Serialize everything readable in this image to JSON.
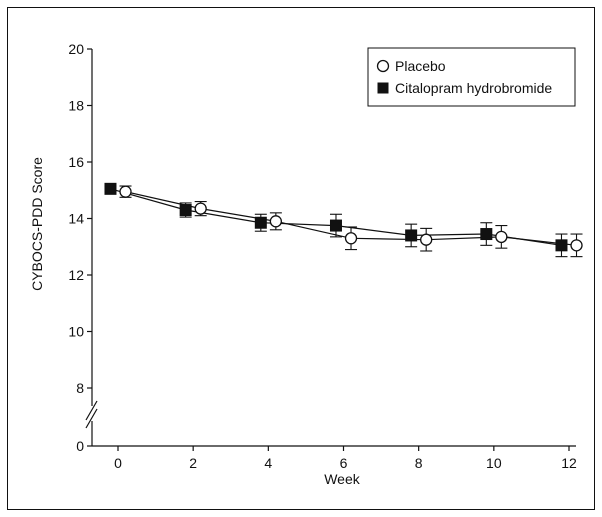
{
  "chart_data": {
    "type": "line",
    "title": "",
    "xlabel": "Week",
    "ylabel": "CYBOCS-PDD Score",
    "xlim": [
      -0.6,
      12.3
    ],
    "x_ticks": [
      "0",
      "2",
      "4",
      "6",
      "8",
      "10",
      "12"
    ],
    "y_ticks": [
      "0",
      "8",
      "10",
      "12",
      "14",
      "16",
      "18",
      "20"
    ],
    "y_axis_break": "between 0 and 8",
    "legend_position": "top-right",
    "grid": false,
    "series": [
      {
        "name": "Placebo",
        "marker": "open-circle",
        "x": [
          0.2,
          2.2,
          4.2,
          6.2,
          8.2,
          10.2,
          12.2
        ],
        "y": [
          14.95,
          14.35,
          13.9,
          13.3,
          13.25,
          13.35,
          13.05
        ],
        "err": [
          0.2,
          0.25,
          0.3,
          0.4,
          0.4,
          0.4,
          0.4
        ]
      },
      {
        "name": "Citalopram hydrobromide",
        "marker": "filled-square",
        "x": [
          -0.2,
          1.8,
          3.8,
          5.8,
          7.8,
          9.8,
          11.8
        ],
        "y": [
          15.05,
          14.3,
          13.85,
          13.75,
          13.4,
          13.45,
          13.05
        ],
        "err": [
          0.1,
          0.25,
          0.3,
          0.4,
          0.4,
          0.4,
          0.4
        ]
      }
    ]
  }
}
